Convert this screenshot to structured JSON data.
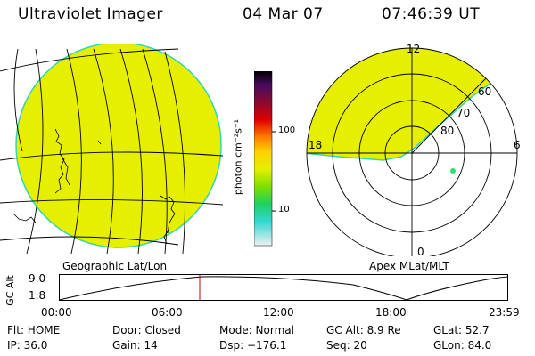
{
  "header": {
    "title": "Ultraviolet Imager",
    "date": "04 Mar 07",
    "time": "07:46:39 UT"
  },
  "panels": {
    "geo_label": "Geographic Lat/Lon",
    "apex_label": "Apex MLat/MLT"
  },
  "colorbar": {
    "unit_label": "photon cm⁻²s⁻¹",
    "ticks": [
      "100",
      "10"
    ]
  },
  "polar": {
    "mlt_labels": [
      "12",
      "18",
      "6",
      "0"
    ],
    "lat_labels": [
      "60",
      "70",
      "80"
    ]
  },
  "gc_alt": {
    "axis_label": "GC Alt",
    "y_ticks": [
      "9.0",
      "1.8"
    ],
    "x_ticks": [
      "00:00",
      "06:00",
      "12:00",
      "18:00",
      "23:59"
    ]
  },
  "info": {
    "flt": "Flt: HOME",
    "ip": "IP: 36.0",
    "door": "Door: Closed",
    "gain": "Gain: 14",
    "mode": "Mode: Normal",
    "dsp": "Dsp: −176.1",
    "gcalt": "GC Alt: 8.9 Re",
    "seq": "Seq: 20",
    "glat": "GLat:  52.7",
    "glon": "GLon:  84.0"
  },
  "colors": {
    "fill": "#e6ef00",
    "edge": "#33d6b0",
    "marker": "#cc0000"
  }
}
